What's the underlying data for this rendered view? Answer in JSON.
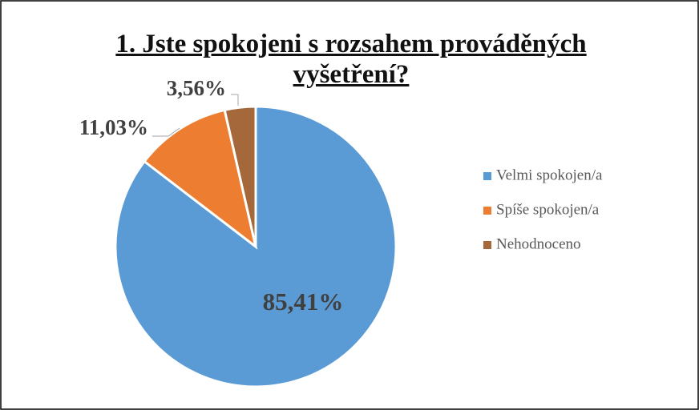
{
  "chart_data": {
    "type": "pie",
    "title": "1. Jste spokojeni s rozsahem prováděných vyšetření?",
    "categories": [
      "Velmi spokojen/a",
      "Spíše spokojen/a",
      "Nehodnoceno"
    ],
    "values": [
      85.41,
      11.03,
      3.56
    ],
    "value_labels": [
      "85,41%",
      "11,03%",
      "3,56%"
    ],
    "colors": [
      "#5b9bd5",
      "#ed7d31",
      "#a5683a"
    ],
    "legend": "right"
  }
}
